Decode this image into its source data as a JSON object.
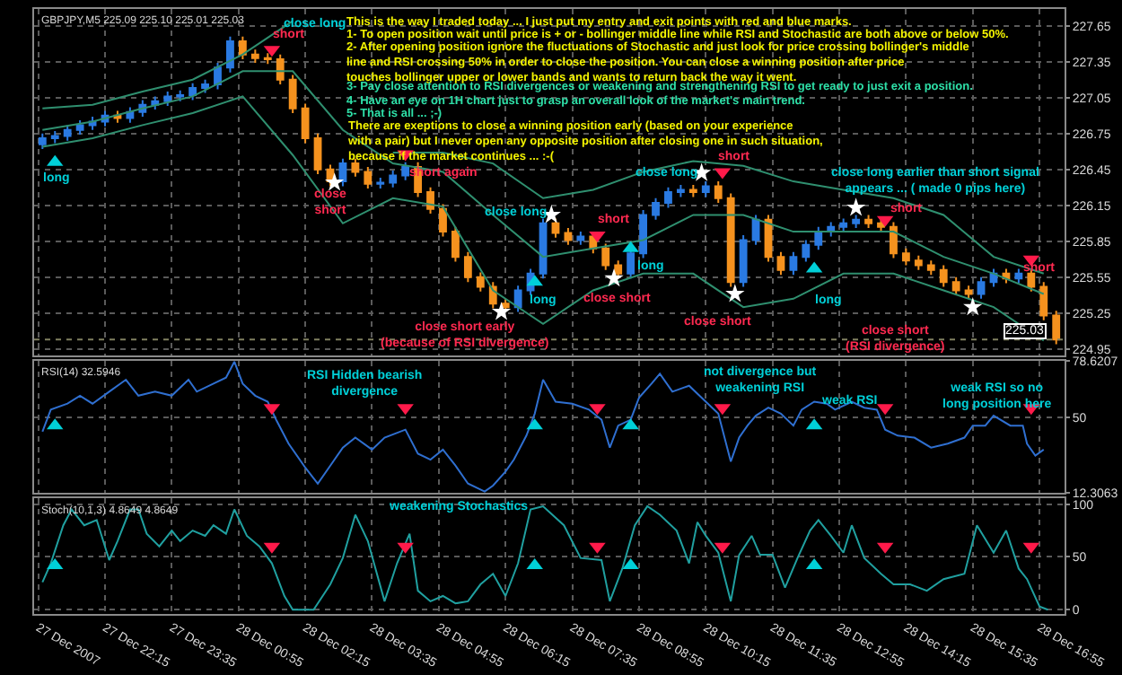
{
  "chart_data": [
    {
      "type": "candlestick",
      "title": "GBPJPY,M5 225.09 225.10 225.01 225.03",
      "x": [
        "2007-12-27T21:00",
        "2007-12-27T21:15",
        "2007-12-27T21:30",
        "2007-12-27T21:45",
        "2007-12-27T22:00",
        "2007-12-27T22:15",
        "2007-12-27T22:30",
        "2007-12-27T22:45",
        "2007-12-27T23:00",
        "2007-12-27T23:15",
        "2007-12-27T23:30",
        "2007-12-27T23:45",
        "2007-12-28T00:00",
        "2007-12-28T00:15",
        "2007-12-28T00:30",
        "2007-12-28T00:45",
        "2007-12-28T01:00",
        "2007-12-28T01:15",
        "2007-12-28T01:30",
        "2007-12-28T01:45",
        "2007-12-28T02:00",
        "2007-12-28T02:15",
        "2007-12-28T02:30",
        "2007-12-28T02:45",
        "2007-12-28T03:00",
        "2007-12-28T03:15",
        "2007-12-28T03:30",
        "2007-12-28T03:45",
        "2007-12-28T04:00",
        "2007-12-28T04:15",
        "2007-12-28T04:30",
        "2007-12-28T04:45",
        "2007-12-28T05:00",
        "2007-12-28T05:15",
        "2007-12-28T05:30",
        "2007-12-28T05:45",
        "2007-12-28T06:00",
        "2007-12-28T06:15",
        "2007-12-28T06:30",
        "2007-12-28T06:45",
        "2007-12-28T07:00",
        "2007-12-28T07:15",
        "2007-12-28T07:30",
        "2007-12-28T07:45",
        "2007-12-28T08:00",
        "2007-12-28T08:15",
        "2007-12-28T08:30",
        "2007-12-28T08:45",
        "2007-12-28T09:00",
        "2007-12-28T09:15",
        "2007-12-28T09:30",
        "2007-12-28T09:45",
        "2007-12-28T10:00",
        "2007-12-28T10:15",
        "2007-12-28T10:30",
        "2007-12-28T10:45",
        "2007-12-28T11:00",
        "2007-12-28T11:15",
        "2007-12-28T11:30",
        "2007-12-28T11:45",
        "2007-12-28T12:00",
        "2007-12-28T12:15",
        "2007-12-28T12:30",
        "2007-12-28T12:45",
        "2007-12-28T13:00",
        "2007-12-28T13:15",
        "2007-12-28T13:30",
        "2007-12-28T13:45",
        "2007-12-28T14:00",
        "2007-12-28T14:15",
        "2007-12-28T14:30",
        "2007-12-28T14:45",
        "2007-12-28T15:00",
        "2007-12-28T15:15",
        "2007-12-28T15:30",
        "2007-12-28T15:45",
        "2007-12-28T16:00",
        "2007-12-28T16:15",
        "2007-12-28T16:30",
        "2007-12-28T16:45",
        "2007-12-28T17:00",
        "2007-12-28T17:15"
      ],
      "ohlc": [
        [
          226.66,
          226.75,
          226.62,
          226.71
        ],
        [
          226.71,
          226.77,
          226.67,
          226.73
        ],
        [
          226.73,
          226.82,
          226.69,
          226.78
        ],
        [
          226.78,
          226.86,
          226.74,
          226.82
        ],
        [
          226.82,
          226.89,
          226.78,
          226.85
        ],
        [
          226.85,
          226.94,
          226.81,
          226.9
        ],
        [
          226.9,
          226.94,
          226.84,
          226.88
        ],
        [
          226.88,
          226.97,
          226.84,
          226.93
        ],
        [
          226.93,
          227.03,
          226.89,
          226.99
        ],
        [
          226.99,
          227.06,
          226.95,
          227.02
        ],
        [
          227.02,
          227.1,
          226.98,
          227.06
        ],
        [
          227.06,
          227.11,
          227.02,
          227.07
        ],
        [
          227.07,
          227.17,
          227.03,
          227.13
        ],
        [
          227.13,
          227.2,
          227.09,
          227.16
        ],
        [
          227.16,
          227.34,
          227.12,
          227.3
        ],
        [
          227.3,
          227.56,
          227.26,
          227.52
        ],
        [
          227.52,
          227.56,
          227.37,
          227.41
        ],
        [
          227.41,
          227.45,
          227.34,
          227.38
        ],
        [
          227.38,
          227.42,
          227.33,
          227.37
        ],
        [
          227.37,
          227.41,
          227.16,
          227.2
        ],
        [
          227.2,
          227.24,
          226.92,
          226.96
        ],
        [
          226.96,
          227.0,
          226.67,
          226.71
        ],
        [
          226.71,
          226.75,
          226.41,
          226.45
        ],
        [
          226.45,
          226.49,
          226.31,
          226.35
        ],
        [
          226.35,
          226.54,
          226.31,
          226.5
        ],
        [
          226.5,
          226.54,
          226.39,
          226.43
        ],
        [
          226.43,
          226.47,
          226.29,
          226.33
        ],
        [
          226.33,
          226.38,
          226.29,
          226.34
        ],
        [
          226.34,
          226.44,
          226.3,
          226.4
        ],
        [
          226.4,
          226.51,
          226.36,
          226.47
        ],
        [
          226.47,
          226.51,
          226.22,
          226.26
        ],
        [
          226.26,
          226.3,
          226.08,
          226.12
        ],
        [
          226.12,
          226.16,
          225.89,
          225.93
        ],
        [
          225.93,
          225.97,
          225.68,
          225.72
        ],
        [
          225.72,
          225.76,
          225.51,
          225.55
        ],
        [
          225.55,
          225.59,
          225.43,
          225.47
        ],
        [
          225.47,
          225.51,
          225.29,
          225.33
        ],
        [
          225.33,
          225.37,
          225.26,
          225.3
        ],
        [
          225.3,
          225.48,
          225.26,
          225.44
        ],
        [
          225.44,
          225.62,
          225.4,
          225.58
        ],
        [
          225.58,
          226.04,
          225.54,
          226.0
        ],
        [
          226.0,
          226.04,
          225.88,
          225.92
        ],
        [
          225.92,
          225.96,
          225.82,
          225.86
        ],
        [
          225.86,
          225.93,
          225.82,
          225.89
        ],
        [
          225.89,
          225.93,
          225.75,
          225.79
        ],
        [
          225.79,
          225.83,
          225.61,
          225.65
        ],
        [
          225.65,
          225.69,
          225.54,
          225.58
        ],
        [
          225.58,
          225.79,
          225.54,
          225.75
        ],
        [
          225.75,
          226.11,
          225.71,
          226.07
        ],
        [
          226.07,
          226.21,
          226.03,
          226.17
        ],
        [
          226.17,
          226.3,
          226.13,
          226.26
        ],
        [
          226.26,
          226.32,
          226.22,
          226.28
        ],
        [
          226.28,
          226.32,
          226.22,
          226.26
        ],
        [
          226.26,
          226.35,
          226.22,
          226.31
        ],
        [
          226.31,
          226.35,
          226.17,
          226.21
        ],
        [
          226.21,
          226.25,
          225.47,
          225.51
        ],
        [
          225.51,
          225.9,
          225.47,
          225.86
        ],
        [
          225.86,
          226.07,
          225.82,
          226.03
        ],
        [
          226.03,
          226.07,
          225.68,
          225.72
        ],
        [
          225.72,
          225.76,
          225.57,
          225.61
        ],
        [
          225.61,
          225.76,
          225.57,
          225.72
        ],
        [
          225.72,
          225.86,
          225.68,
          225.82
        ],
        [
          225.82,
          225.97,
          225.78,
          225.93
        ],
        [
          225.93,
          226.01,
          225.89,
          225.97
        ],
        [
          225.97,
          226.04,
          225.93,
          226.0
        ],
        [
          226.0,
          226.07,
          225.96,
          226.03
        ],
        [
          226.03,
          226.07,
          225.96,
          226.0
        ],
        [
          226.0,
          226.04,
          225.93,
          225.97
        ],
        [
          225.97,
          226.01,
          225.71,
          225.75
        ],
        [
          225.75,
          225.79,
          225.65,
          225.69
        ],
        [
          225.69,
          225.73,
          225.61,
          225.65
        ],
        [
          225.65,
          225.69,
          225.57,
          225.61
        ],
        [
          225.61,
          225.65,
          225.47,
          225.51
        ],
        [
          225.51,
          225.55,
          225.4,
          225.44
        ],
        [
          225.44,
          225.48,
          225.37,
          225.41
        ],
        [
          225.41,
          225.55,
          225.37,
          225.51
        ],
        [
          225.51,
          225.62,
          225.47,
          225.58
        ],
        [
          225.58,
          225.62,
          225.5,
          225.54
        ],
        [
          225.54,
          225.62,
          225.5,
          225.58
        ],
        [
          225.58,
          225.62,
          225.43,
          225.47
        ],
        [
          225.47,
          225.51,
          225.19,
          225.23
        ],
        [
          225.23,
          225.27,
          224.99,
          225.03
        ]
      ],
      "series": [
        {
          "type": "line",
          "color": "#2f8f6f",
          "x": [
            "2007-12-27T21:00",
            "2007-12-27T22:00",
            "2007-12-27T23:00",
            "2007-12-28T00:00",
            "2007-12-28T01:00",
            "2007-12-28T02:00",
            "2007-12-28T03:00",
            "2007-12-28T04:00",
            "2007-12-28T05:00",
            "2007-12-28T06:00",
            "2007-12-28T07:00",
            "2007-12-28T08:00",
            "2007-12-28T09:00",
            "2007-12-28T10:00",
            "2007-12-28T11:00",
            "2007-12-28T12:00",
            "2007-12-28T13:00",
            "2007-12-28T14:00",
            "2007-12-28T15:00",
            "2007-12-28T16:00",
            "2007-12-28T17:00"
          ],
          "values": [
            226.96,
            226.99,
            227.1,
            227.2,
            227.41,
            227.69,
            null,
            226.59,
            226.59,
            226.5,
            226.21,
            226.28,
            226.43,
            226.52,
            226.48,
            226.35,
            226.28,
            226.21,
            226.07,
            225.72,
            225.58
          ]
        },
        {
          "type": "line",
          "color": "#2f8f6f",
          "x": [
            "2007-12-27T21:00",
            "2007-12-27T22:00",
            "2007-12-27T23:00",
            "2007-12-28T00:00",
            "2007-12-28T01:00",
            "2007-12-28T02:00",
            "2007-12-28T03:00",
            "2007-12-28T04:00",
            "2007-12-28T05:00",
            "2007-12-28T06:00",
            "2007-12-28T07:00",
            "2007-12-28T08:00",
            "2007-12-28T09:00",
            "2007-12-28T10:00",
            "2007-12-28T11:00",
            "2007-12-28T12:00",
            "2007-12-28T13:00",
            "2007-12-28T14:00",
            "2007-12-28T15:00",
            "2007-12-28T16:00",
            "2007-12-28T17:00"
          ],
          "values": [
            226.78,
            226.85,
            226.96,
            227.06,
            227.27,
            227.27,
            226.78,
            226.5,
            226.43,
            226.07,
            225.72,
            225.79,
            225.86,
            226.07,
            226.07,
            225.93,
            225.93,
            225.93,
            225.72,
            225.58,
            225.41
          ]
        },
        {
          "type": "line",
          "color": "#2f8f6f",
          "x": [
            "2007-12-27T21:00",
            "2007-12-27T22:00",
            "2007-12-27T23:00",
            "2007-12-28T00:00",
            "2007-12-28T01:00",
            "2007-12-28T02:00",
            "2007-12-28T03:00",
            "2007-12-28T04:00",
            "2007-12-28T05:00",
            "2007-12-28T06:00",
            "2007-12-28T07:00",
            "2007-12-28T08:00",
            "2007-12-28T09:00",
            "2007-12-28T10:00",
            "2007-12-28T11:00",
            "2007-12-28T12:00",
            "2007-12-28T13:00",
            "2007-12-28T14:00",
            "2007-12-28T15:00",
            "2007-12-28T16:00",
            "2007-12-28T17:00"
          ],
          "values": [
            226.64,
            226.71,
            226.82,
            226.92,
            227.06,
            226.57,
            226.0,
            226.21,
            226.14,
            225.44,
            225.16,
            225.44,
            225.58,
            225.58,
            225.3,
            225.37,
            225.58,
            225.58,
            225.44,
            225.3,
            225.02
          ]
        },
        {
          "type": "scatter",
          "marker": "triangle",
          "color": "#00d0d8",
          "x": [
            "2007-12-27T21:15",
            "2007-12-28T06:50",
            "2007-12-28T08:45",
            "2007-12-28T12:25"
          ],
          "values": [
            226.51,
            225.51,
            225.79,
            225.62
          ]
        },
        {
          "type": "scatter",
          "marker": "triangle-down",
          "color": "#ff1a4a",
          "x": [
            "2007-12-28T01:35",
            "2007-12-28T04:15",
            "2007-12-28T08:05",
            "2007-12-28T10:35",
            "2007-12-28T13:50",
            "2007-12-28T16:45"
          ],
          "values": [
            227.45,
            226.58,
            225.9,
            226.43,
            226.03,
            225.7
          ]
        },
        {
          "type": "scatter",
          "marker": "star",
          "color": "#ffffff",
          "x": [
            "2007-12-28T02:50",
            "2007-12-28T06:10",
            "2007-12-28T07:10",
            "2007-12-28T08:25",
            "2007-12-28T10:10",
            "2007-12-28T10:50",
            "2007-12-28T13:15",
            "2007-12-28T15:35"
          ],
          "values": [
            226.34,
            225.26,
            226.07,
            225.54,
            226.42,
            225.41,
            226.13,
            225.3
          ]
        }
      ],
      "xlim": [
        "2007-12-27T20:50",
        "2007-12-28T17:25"
      ],
      "xticks": [
        {
          "value": "2007-12-27T20:55",
          "label": null
        },
        {
          "value": "2007-12-27T22:15",
          "label": null
        },
        {
          "value": "2007-12-27T23:35",
          "label": null
        },
        {
          "value": "2007-12-28T00:55",
          "label": null
        },
        {
          "value": "2007-12-28T02:15",
          "label": null
        },
        {
          "value": "2007-12-28T03:35",
          "label": null
        },
        {
          "value": "2007-12-28T04:55",
          "label": null
        },
        {
          "value": "2007-12-28T06:15",
          "label": null
        },
        {
          "value": "2007-12-28T07:35",
          "label": null
        },
        {
          "value": "2007-12-28T08:55",
          "label": null
        },
        {
          "value": "2007-12-28T10:15",
          "label": null
        },
        {
          "value": "2007-12-28T11:35",
          "label": null
        },
        {
          "value": "2007-12-28T12:55",
          "label": null
        },
        {
          "value": "2007-12-28T14:15",
          "label": null
        },
        {
          "value": "2007-12-28T15:35",
          "label": null
        },
        {
          "value": "2007-12-28T16:55",
          "label": null
        }
      ],
      "ylim": [
        224.9,
        227.79
      ],
      "yticks": [
        227.65,
        227.35,
        227.05,
        226.75,
        226.45,
        226.15,
        225.85,
        225.55,
        225.25,
        224.95
      ],
      "grid": true,
      "tick_labels": "y",
      "ref_lines": [
        {
          "axis": "y",
          "value": 225.03,
          "label": "225.03",
          "color": "#808060",
          "line_style": "dotted"
        }
      ],
      "annotations": [
        "This is the way I traded today ... I just put my entry and exit points with red and blue marks.",
        "1- To open position wait until price is + or - bollinger middle line while RSI and Stochastic are both above or below 50%.",
        "2- After opening position ignore the fluctuations of Stochastic and just look for price crossing bollinger's middle\nline and RSI crossing 50% in order to close the position. You can close a winning position after price\ntouches bollinger upper or lower bands and wants to return back the way it went.",
        "3- Pay close attention to RSI divergences or weakening and strengthening RSI to get ready to just exit a position.",
        "4- Have an eye on 1H chart just to grasp an overall look of the market's main trend.",
        "5- That is all ... ;-)",
        "There are exeptions to close a winning position early (based on your experience\nwith a pair) but I never open any opposite position after closing one in such situation,\nbecause if the market continues ... :-(",
        "long",
        "close long",
        "short",
        "close\nshort",
        "short again",
        "close long",
        "long",
        "close short early\n(because of RSI divergence)",
        "close long",
        "short",
        "short",
        "long",
        "close short",
        "close short",
        "long",
        "close long earlier than short signal\nappears ... ( made 0 pips here)",
        "short",
        "close short\n(RSI divergence)",
        "short"
      ]
    },
    {
      "type": "line",
      "title": "RSI(14) 32.5946",
      "series": [
        {
          "color": "#2f6fd0",
          "x": [
            "2007-12-27T21:00",
            "2007-12-27T21:10",
            "2007-12-27T21:30",
            "2007-12-27T21:45",
            "2007-12-27T22:00",
            "2007-12-27T22:20",
            "2007-12-27T22:40",
            "2007-12-27T22:55",
            "2007-12-27T23:15",
            "2007-12-27T23:35",
            "2007-12-27T23:55",
            "2007-12-28T00:05",
            "2007-12-28T00:25",
            "2007-12-28T00:40",
            "2007-12-28T00:50",
            "2007-12-28T01:00",
            "2007-12-28T01:15",
            "2007-12-28T01:30",
            "2007-12-28T01:40",
            "2007-12-28T01:55",
            "2007-12-28T02:15",
            "2007-12-28T02:30",
            "2007-12-28T02:45",
            "2007-12-28T03:00",
            "2007-12-28T03:15",
            "2007-12-28T03:35",
            "2007-12-28T03:50",
            "2007-12-28T04:15",
            "2007-12-28T04:30",
            "2007-12-28T04:45",
            "2007-12-28T05:00",
            "2007-12-28T05:15",
            "2007-12-28T05:30",
            "2007-12-28T05:50",
            "2007-12-28T06:00",
            "2007-12-28T06:15",
            "2007-12-28T06:25",
            "2007-12-28T06:40",
            "2007-12-28T06:50",
            "2007-12-28T07:00",
            "2007-12-28T07:15",
            "2007-12-28T07:35",
            "2007-12-28T07:55",
            "2007-12-28T08:10",
            "2007-12-28T08:20",
            "2007-12-28T08:30",
            "2007-12-28T08:45",
            "2007-12-28T08:55",
            "2007-12-28T09:10",
            "2007-12-28T09:20",
            "2007-12-28T09:35",
            "2007-12-28T09:55",
            "2007-12-28T10:15",
            "2007-12-28T10:30",
            "2007-12-28T10:45",
            "2007-12-28T10:55",
            "2007-12-28T11:05",
            "2007-12-28T11:15",
            "2007-12-28T11:30",
            "2007-12-28T11:45",
            "2007-12-28T12:00",
            "2007-12-28T12:10",
            "2007-12-28T12:25",
            "2007-12-28T12:40",
            "2007-12-28T12:50",
            "2007-12-28T13:10",
            "2007-12-28T13:25",
            "2007-12-28T13:40",
            "2007-12-28T13:50",
            "2007-12-28T14:05",
            "2007-12-28T14:25",
            "2007-12-28T14:45",
            "2007-12-28T15:05",
            "2007-12-28T15:25",
            "2007-12-28T15:35",
            "2007-12-28T15:50",
            "2007-12-28T16:00",
            "2007-12-28T16:20",
            "2007-12-28T16:35",
            "2007-12-28T16:40",
            "2007-12-28T16:50",
            "2007-12-28T17:00"
          ],
          "values": [
            43,
            54,
            57,
            61,
            57,
            63,
            69,
            61,
            63,
            61,
            69,
            63,
            67,
            70,
            78,
            67,
            61,
            58,
            49,
            37,
            25,
            17,
            26,
            35,
            40,
            34,
            40,
            44,
            32,
            29,
            34,
            26,
            17,
            13,
            16,
            23,
            29,
            41,
            52,
            69,
            58,
            57,
            54,
            49,
            35,
            46,
            49,
            60,
            67,
            72,
            63,
            66,
            58,
            52,
            28,
            40,
            46,
            51,
            55,
            52,
            46,
            54,
            58,
            57,
            54,
            58,
            55,
            54,
            44,
            41,
            40,
            35,
            37,
            40,
            46,
            46,
            51,
            46,
            46,
            37,
            31,
            34
          ]
        },
        {
          "type": "scatter",
          "marker": "triangle",
          "color": "#00d0d8",
          "x": [
            "2007-12-27T21:15",
            "2007-12-28T06:50",
            "2007-12-28T08:45",
            "2007-12-28T12:25"
          ],
          "values": [
            46,
            46,
            46,
            46
          ]
        },
        {
          "type": "scatter",
          "marker": "triangle-down",
          "color": "#ff1a4a",
          "x": [
            "2007-12-28T01:35",
            "2007-12-28T04:15",
            "2007-12-28T08:05",
            "2007-12-28T10:35",
            "2007-12-28T13:50",
            "2007-12-28T16:45"
          ],
          "values": [
            55,
            55,
            55,
            55,
            55,
            55
          ]
        }
      ],
      "xlim": [
        "2007-12-27T20:50",
        "2007-12-28T17:25"
      ],
      "xticks": [
        {
          "value": "2007-12-27T20:55",
          "label": null
        },
        {
          "value": "2007-12-27T22:15",
          "label": null
        },
        {
          "value": "2007-12-27T23:35",
          "label": null
        },
        {
          "value": "2007-12-28T00:55",
          "label": null
        },
        {
          "value": "2007-12-28T02:15",
          "label": null
        },
        {
          "value": "2007-12-28T03:35",
          "label": null
        },
        {
          "value": "2007-12-28T04:55",
          "label": null
        },
        {
          "value": "2007-12-28T06:15",
          "label": null
        },
        {
          "value": "2007-12-28T07:35",
          "label": null
        },
        {
          "value": "2007-12-28T08:55",
          "label": null
        },
        {
          "value": "2007-12-28T10:15",
          "label": null
        },
        {
          "value": "2007-12-28T11:35",
          "label": null
        },
        {
          "value": "2007-12-28T12:55",
          "label": null
        },
        {
          "value": "2007-12-28T14:15",
          "label": null
        },
        {
          "value": "2007-12-28T15:35",
          "label": null
        },
        {
          "value": "2007-12-28T16:55",
          "label": null
        }
      ],
      "ylim": [
        12.3063,
        78.6207
      ],
      "yticks": [
        78.6207,
        50,
        12.3063
      ],
      "grid": true,
      "tick_labels": "y",
      "annotations": [
        "RSI Hidden bearish\ndivergence",
        "not divergence but\nweakening RSI",
        "weak RSI",
        "weak RSI so no\nlong position here"
      ]
    },
    {
      "type": "line",
      "title": "Stoch(10,1,3) 4.8649 4.8649",
      "series": [
        {
          "color": "#20a0a0",
          "x": [
            "2007-12-27T21:00",
            "2007-12-27T21:10",
            "2007-12-27T21:25",
            "2007-12-27T21:35",
            "2007-12-27T21:50",
            "2007-12-27T22:05",
            "2007-12-27T22:20",
            "2007-12-27T22:30",
            "2007-12-27T22:45",
            "2007-12-27T22:55",
            "2007-12-27T23:05",
            "2007-12-27T23:20",
            "2007-12-27T23:35",
            "2007-12-27T23:45",
            "2007-12-28T00:00",
            "2007-12-28T00:15",
            "2007-12-28T00:25",
            "2007-12-28T00:40",
            "2007-12-28T00:50",
            "2007-12-28T01:05",
            "2007-12-28T01:20",
            "2007-12-28T01:35",
            "2007-12-28T01:50",
            "2007-12-28T02:00",
            "2007-12-28T02:25",
            "2007-12-28T02:45",
            "2007-12-28T03:00",
            "2007-12-28T03:15",
            "2007-12-28T03:30",
            "2007-12-28T03:50",
            "2007-12-28T04:05",
            "2007-12-28T04:20",
            "2007-12-28T04:30",
            "2007-12-28T04:45",
            "2007-12-28T05:00",
            "2007-12-28T05:15",
            "2007-12-28T05:30",
            "2007-12-28T05:45",
            "2007-12-28T06:00",
            "2007-12-28T06:15",
            "2007-12-28T06:30",
            "2007-12-28T06:45",
            "2007-12-28T07:00",
            "2007-12-28T07:25",
            "2007-12-28T07:45",
            "2007-12-28T08:10",
            "2007-12-28T08:20",
            "2007-12-28T08:35",
            "2007-12-28T08:50",
            "2007-12-28T09:05",
            "2007-12-28T09:20",
            "2007-12-28T09:40",
            "2007-12-28T09:55",
            "2007-12-28T10:05",
            "2007-12-28T10:15",
            "2007-12-28T10:30",
            "2007-12-28T10:45",
            "2007-12-28T10:55",
            "2007-12-28T11:10",
            "2007-12-28T11:20",
            "2007-12-28T11:35",
            "2007-12-28T11:50",
            "2007-12-28T12:05",
            "2007-12-28T12:20",
            "2007-12-28T12:30",
            "2007-12-28T12:45",
            "2007-12-28T13:00",
            "2007-12-28T13:10",
            "2007-12-28T13:25",
            "2007-12-28T13:45",
            "2007-12-28T14:00",
            "2007-12-28T14:20",
            "2007-12-28T14:40",
            "2007-12-28T15:00",
            "2007-12-28T15:25",
            "2007-12-28T15:40",
            "2007-12-28T16:00",
            "2007-12-28T16:15",
            "2007-12-28T16:30",
            "2007-12-28T16:40",
            "2007-12-28T16:55",
            "2007-12-28T17:05"
          ],
          "values": [
            26,
            44,
            80,
            95,
            80,
            85,
            47,
            65,
            95,
            95,
            72,
            60,
            75,
            65,
            75,
            70,
            80,
            72,
            95,
            70,
            60,
            44,
            13,
            0,
            0,
            24,
            49,
            90,
            65,
            8,
            44,
            72,
            18,
            8,
            13,
            6,
            8,
            24,
            34,
            13,
            44,
            95,
            98,
            80,
            49,
            47,
            8,
            39,
            80,
            98,
            90,
            75,
            44,
            83,
            70,
            54,
            8,
            52,
            70,
            52,
            52,
            21,
            49,
            75,
            85,
            70,
            54,
            80,
            49,
            34,
            24,
            24,
            18,
            29,
            34,
            80,
            54,
            75,
            39,
            29,
            3,
            0
          ]
        },
        {
          "type": "scatter",
          "marker": "triangle",
          "color": "#00d0d8",
          "x": [
            "2007-12-27T21:15",
            "2007-12-28T06:50",
            "2007-12-28T08:45",
            "2007-12-28T12:25"
          ],
          "values": [
            42,
            42,
            42,
            42
          ]
        },
        {
          "type": "scatter",
          "marker": "triangle-down",
          "color": "#ff1a4a",
          "x": [
            "2007-12-28T01:35",
            "2007-12-28T04:15",
            "2007-12-28T08:05",
            "2007-12-28T10:35",
            "2007-12-28T13:50",
            "2007-12-28T16:45"
          ],
          "values": [
            60,
            60,
            60,
            60,
            60,
            60
          ]
        }
      ],
      "xlim": [
        "2007-12-27T20:50",
        "2007-12-28T17:25"
      ],
      "xticks": [
        {
          "value": "2007-12-27T20:55",
          "label": "27 Dec 2007"
        },
        {
          "value": "2007-12-27T22:15",
          "label": "27 Dec 22:15"
        },
        {
          "value": "2007-12-27T23:35",
          "label": "27 Dec 23:35"
        },
        {
          "value": "2007-12-28T00:55",
          "label": "28 Dec 00:55"
        },
        {
          "value": "2007-12-28T02:15",
          "label": "28 Dec 02:15"
        },
        {
          "value": "2007-12-28T03:35",
          "label": "28 Dec 03:35"
        },
        {
          "value": "2007-12-28T04:55",
          "label": "28 Dec 04:55"
        },
        {
          "value": "2007-12-28T06:15",
          "label": "28 Dec 06:15"
        },
        {
          "value": "2007-12-28T07:35",
          "label": "28 Dec 07:35"
        },
        {
          "value": "2007-12-28T08:55",
          "label": "28 Dec 08:55"
        },
        {
          "value": "2007-12-28T10:15",
          "label": "28 Dec 10:15"
        },
        {
          "value": "2007-12-28T11:35",
          "label": "28 Dec 11:35"
        },
        {
          "value": "2007-12-28T12:55",
          "label": "28 Dec 12:55"
        },
        {
          "value": "2007-12-28T14:15",
          "label": "28 Dec 14:15"
        },
        {
          "value": "2007-12-28T15:35",
          "label": "28 Dec 15:35"
        },
        {
          "value": "2007-12-28T16:55",
          "label": "28 Dec 16:55"
        }
      ],
      "ylim": [
        -4,
        106
      ],
      "yticks": [
        100,
        50,
        0
      ],
      "grid": true,
      "annotations": [
        "weakening Stochastics"
      ]
    }
  ]
}
